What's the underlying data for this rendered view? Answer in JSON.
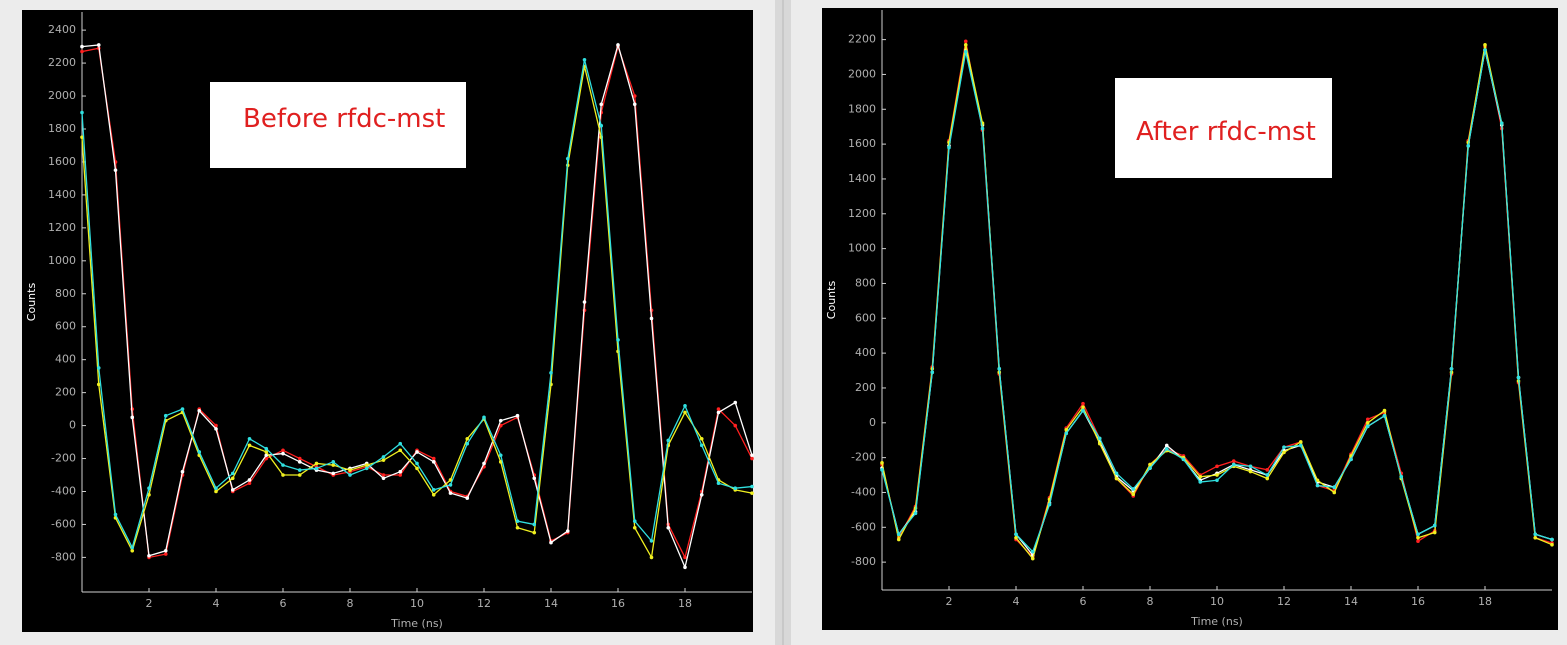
{
  "chart_data": [
    {
      "type": "line",
      "annotation": "Before rfdc-mst",
      "xlabel": "Time (ns)",
      "ylabel": "Counts",
      "x": [
        0,
        0.5,
        1,
        1.5,
        2,
        2.5,
        3,
        3.5,
        4,
        4.5,
        5,
        5.5,
        6,
        6.5,
        7,
        7.5,
        8,
        8.5,
        9,
        9.5,
        10,
        10.5,
        11,
        11.5,
        12,
        12.5,
        13,
        13.5,
        14,
        14.5,
        15,
        15.5,
        16,
        16.5,
        17,
        17.5,
        18,
        18.5,
        19,
        19.5,
        20
      ],
      "xlim": [
        0,
        20
      ],
      "xticks": [
        2,
        4,
        6,
        8,
        10,
        12,
        14,
        16,
        18
      ],
      "ylim": [
        -1010,
        2510
      ],
      "yticks": [
        -800,
        -600,
        -400,
        -200,
        0,
        200,
        400,
        600,
        800,
        1000,
        1200,
        1400,
        1600,
        1800,
        2000,
        2200,
        2400
      ],
      "series": [
        {
          "color": "#ff2020",
          "values": [
            2270,
            2290,
            1600,
            100,
            -800,
            -780,
            -300,
            100,
            0,
            -400,
            -350,
            -200,
            -150,
            -200,
            -250,
            -300,
            -280,
            -250,
            -300,
            -300,
            -150,
            -200,
            -400,
            -430,
            -250,
            0,
            50,
            -300,
            -700,
            -650,
            700,
            1900,
            2300,
            2000,
            700,
            -600,
            -800,
            -400,
            100,
            0,
            -200
          ]
        },
        {
          "color": "#ffffff",
          "values": [
            2300,
            2310,
            1550,
            50,
            -790,
            -760,
            -280,
            90,
            -20,
            -390,
            -330,
            -180,
            -170,
            -220,
            -270,
            -290,
            -260,
            -230,
            -320,
            -280,
            -160,
            -220,
            -410,
            -440,
            -230,
            30,
            60,
            -320,
            -710,
            -640,
            750,
            1950,
            2310,
            1950,
            650,
            -620,
            -860,
            -420,
            80,
            140,
            -180
          ]
        },
        {
          "color": "#f0f020",
          "values": [
            1750,
            250,
            -560,
            -760,
            -420,
            30,
            80,
            -180,
            -400,
            -320,
            -120,
            -160,
            -300,
            -300,
            -230,
            -240,
            -270,
            -240,
            -210,
            -150,
            -260,
            -420,
            -330,
            -80,
            40,
            -220,
            -620,
            -650,
            250,
            1580,
            2180,
            1750,
            450,
            -620,
            -800,
            -120,
            80,
            -80,
            -330,
            -390,
            -410
          ]
        },
        {
          "color": "#30e0e0",
          "values": [
            1900,
            350,
            -540,
            -740,
            -380,
            60,
            100,
            -160,
            -380,
            -290,
            -80,
            -140,
            -240,
            -270,
            -260,
            -220,
            -300,
            -260,
            -190,
            -110,
            -230,
            -390,
            -360,
            -110,
            50,
            -180,
            -580,
            -600,
            320,
            1620,
            2220,
            1820,
            520,
            -580,
            -700,
            -90,
            120,
            -120,
            -350,
            -380,
            -370
          ]
        }
      ]
    },
    {
      "type": "line",
      "annotation": "After rfdc-mst",
      "xlabel": "Time (ns)",
      "ylabel": "Counts",
      "x": [
        0,
        0.5,
        1,
        1.5,
        2,
        2.5,
        3,
        3.5,
        4,
        4.5,
        5,
        5.5,
        6,
        6.5,
        7,
        7.5,
        8,
        8.5,
        9,
        9.5,
        10,
        10.5,
        11,
        11.5,
        12,
        12.5,
        13,
        13.5,
        14,
        14.5,
        15,
        15.5,
        16,
        16.5,
        17,
        17.5,
        18,
        18.5,
        19,
        19.5,
        20
      ],
      "xlim": [
        0,
        20
      ],
      "xticks": [
        2,
        4,
        6,
        8,
        10,
        12,
        14,
        16,
        18
      ],
      "ylim": [
        -960,
        2370
      ],
      "yticks": [
        -800,
        -600,
        -400,
        -200,
        0,
        200,
        400,
        600,
        800,
        1000,
        1200,
        1400,
        1600,
        1800,
        2000,
        2200
      ],
      "series": [
        {
          "color": "#ff2020",
          "values": [
            -240,
            -660,
            -480,
            320,
            1620,
            2190,
            1680,
            280,
            -670,
            -770,
            -430,
            -30,
            110,
            -90,
            -320,
            -420,
            -240,
            -150,
            -190,
            -300,
            -250,
            -220,
            -250,
            -270,
            -140,
            -110,
            -360,
            -390,
            -180,
            20,
            60,
            -290,
            -680,
            -620,
            280,
            1620,
            2160,
            1690,
            230,
            -660,
            -690
          ]
        },
        {
          "color": "#ffffff",
          "values": [
            -260,
            -640,
            -510,
            290,
            1590,
            2140,
            1710,
            310,
            -640,
            -760,
            -460,
            -60,
            70,
            -110,
            -310,
            -390,
            -260,
            -130,
            -210,
            -330,
            -290,
            -240,
            -270,
            -300,
            -160,
            -130,
            -340,
            -370,
            -210,
            -20,
            40,
            -310,
            -640,
            -590,
            310,
            1590,
            2140,
            1710,
            260,
            -640,
            -670
          ]
        },
        {
          "color": "#f0f020",
          "values": [
            -230,
            -670,
            -490,
            310,
            1610,
            2170,
            1720,
            290,
            -660,
            -780,
            -440,
            -40,
            90,
            -120,
            -320,
            -410,
            -240,
            -160,
            -200,
            -310,
            -300,
            -250,
            -280,
            -320,
            -170,
            -110,
            -330,
            -400,
            -190,
            0,
            70,
            -320,
            -660,
            -630,
            290,
            1610,
            2170,
            1720,
            240,
            -660,
            -700
          ]
        },
        {
          "color": "#30e0e0",
          "values": [
            -270,
            -640,
            -520,
            290,
            1580,
            2130,
            1690,
            310,
            -640,
            -740,
            -470,
            -60,
            70,
            -90,
            -290,
            -380,
            -260,
            -150,
            -210,
            -340,
            -330,
            -240,
            -250,
            -300,
            -140,
            -130,
            -360,
            -370,
            -210,
            -20,
            40,
            -310,
            -640,
            -590,
            310,
            1590,
            2140,
            1720,
            260,
            -640,
            -670
          ]
        }
      ]
    }
  ]
}
